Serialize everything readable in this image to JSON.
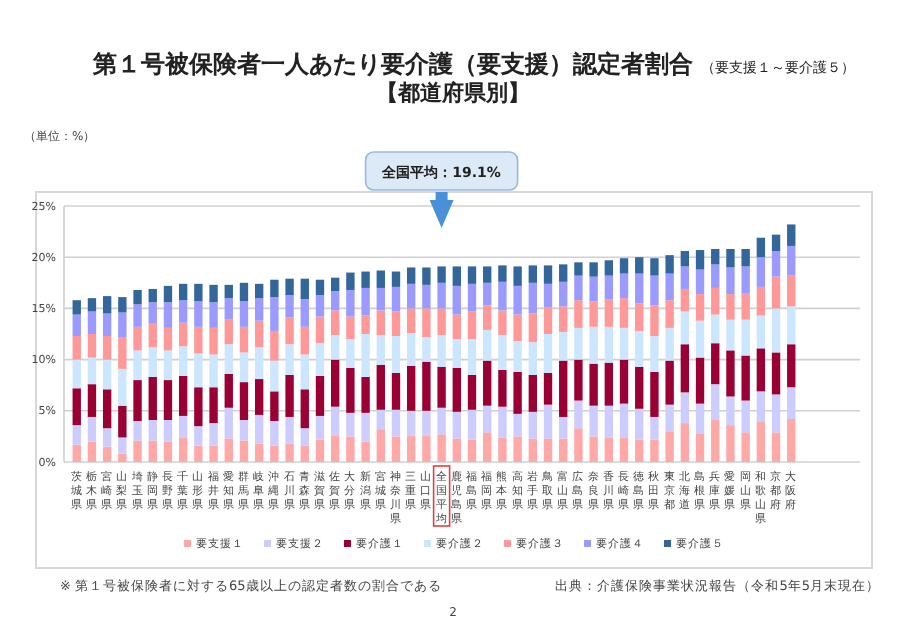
{
  "chart_data": {
    "type": "bar",
    "stacked": true,
    "title": "第１号被保険者一人あたり要介護（要支援）認定者割合",
    "subtitle": "【都道府県別】",
    "ylabel": "（単位：%）",
    "categories": [
      "茨城県",
      "栃木県",
      "宮崎県",
      "山梨県",
      "埼玉県",
      "静岡県",
      "長野県",
      "千葉県",
      "山形県",
      "福井県",
      "愛知県",
      "群馬県",
      "岐阜県",
      "沖縄県",
      "石川県",
      "青森県",
      "滋賀県",
      "佐賀県",
      "大分県",
      "新潟県",
      "宮城県",
      "神奈川県",
      "三重県",
      "山口県",
      "全国平均",
      "鹿児島県",
      "福島県",
      "福岡県",
      "熊本県",
      "高知県",
      "岩手県",
      "鳥取県",
      "富山県",
      "広島県",
      "奈良県",
      "香川県",
      "長崎県",
      "徳島県",
      "秋田県",
      "東京都",
      "北海道",
      "島根県",
      "兵庫県",
      "愛媛県",
      "岡山県",
      "和歌山県",
      "京都府",
      "大阪府"
    ],
    "series": [
      {
        "name": "要支援１",
        "color": "#ffa8a8",
        "values": [
          1.7,
          2.0,
          1.5,
          0.8,
          2.1,
          2.1,
          2.0,
          2.4,
          1.6,
          1.6,
          2.3,
          2.1,
          1.8,
          1.6,
          1.8,
          1.6,
          2.2,
          2.6,
          2.5,
          2.0,
          3.2,
          2.5,
          2.6,
          2.6,
          2.7,
          2.3,
          2.2,
          2.9,
          2.4,
          2.5,
          2.3,
          2.3,
          2.3,
          3.3,
          2.5,
          2.4,
          2.4,
          2.2,
          2.2,
          3.0,
          3.8,
          2.8,
          4.1,
          3.6,
          2.9,
          3.9,
          2.9,
          4.2
        ]
      },
      {
        "name": "要支援２",
        "color": "#ccccff",
        "values": [
          1.9,
          2.4,
          1.8,
          1.6,
          1.9,
          2.0,
          2.1,
          2.1,
          1.9,
          2.2,
          3.0,
          2.0,
          2.8,
          2.4,
          2.6,
          1.7,
          2.3,
          2.8,
          2.3,
          2.8,
          1.9,
          2.6,
          2.4,
          2.4,
          2.6,
          2.6,
          2.9,
          2.6,
          3.0,
          2.2,
          2.6,
          3.3,
          2.1,
          2.7,
          3.0,
          3.1,
          3.3,
          3.0,
          2.2,
          2.6,
          3.0,
          2.9,
          3.5,
          2.8,
          3.1,
          3.0,
          3.7,
          3.1
        ]
      },
      {
        "name": "要介護１",
        "color": "#990033",
        "values": [
          3.6,
          3.2,
          3.8,
          3.1,
          4.0,
          4.2,
          3.9,
          3.9,
          3.8,
          3.5,
          3.3,
          3.7,
          3.5,
          2.9,
          4.1,
          3.8,
          3.9,
          4.6,
          4.4,
          3.5,
          4.4,
          3.6,
          4.4,
          4.8,
          4.0,
          4.3,
          3.4,
          4.4,
          3.6,
          4.1,
          3.6,
          3.1,
          5.5,
          4.0,
          4.1,
          4.2,
          4.3,
          4.1,
          4.4,
          4.3,
          4.7,
          4.5,
          4.0,
          4.5,
          4.4,
          4.2,
          4.1,
          4.2
        ]
      },
      {
        "name": "要介護２",
        "color": "#cce6ff",
        "values": [
          2.8,
          2.6,
          2.9,
          3.6,
          2.9,
          2.9,
          2.9,
          2.9,
          3.3,
          3.2,
          2.9,
          2.9,
          3.1,
          3.0,
          3.0,
          3.4,
          3.2,
          2.4,
          2.8,
          4.2,
          2.9,
          3.6,
          3.2,
          2.4,
          3.1,
          2.8,
          3.5,
          3.0,
          3.4,
          3.0,
          3.2,
          3.8,
          2.8,
          3.1,
          3.6,
          3.5,
          3.1,
          3.5,
          3.5,
          3.2,
          3.2,
          3.6,
          2.8,
          3.0,
          3.5,
          3.2,
          4.3,
          3.7
        ]
      },
      {
        "name": "要介護３",
        "color": "#ff9898",
        "values": [
          2.3,
          2.3,
          2.3,
          3.1,
          2.3,
          2.3,
          2.2,
          2.3,
          2.6,
          2.6,
          2.4,
          2.5,
          2.6,
          2.9,
          2.6,
          2.7,
          2.6,
          2.4,
          2.2,
          1.8,
          2.4,
          2.4,
          2.4,
          2.8,
          2.6,
          2.4,
          2.7,
          2.4,
          2.4,
          2.6,
          2.8,
          2.6,
          2.5,
          2.7,
          2.5,
          2.7,
          2.9,
          2.7,
          3.0,
          2.7,
          2.2,
          2.6,
          2.6,
          2.5,
          2.6,
          2.8,
          3.1,
          3.0
        ]
      },
      {
        "name": "要介護４",
        "color": "#9b9bff",
        "values": [
          2.1,
          2.2,
          2.2,
          2.4,
          2.2,
          2.1,
          2.5,
          2.2,
          2.5,
          2.5,
          2.1,
          2.5,
          2.2,
          3.3,
          2.2,
          2.7,
          2.1,
          1.9,
          2.6,
          2.7,
          2.2,
          2.4,
          2.4,
          2.3,
          2.5,
          2.8,
          2.7,
          2.2,
          2.8,
          2.8,
          3.0,
          2.3,
          2.4,
          2.4,
          2.4,
          2.3,
          2.4,
          2.9,
          2.9,
          2.6,
          2.2,
          2.4,
          2.3,
          2.6,
          2.6,
          2.9,
          2.5,
          2.9
        ]
      },
      {
        "name": "要介護５",
        "color": "#336699",
        "values": [
          1.4,
          1.3,
          1.7,
          1.5,
          1.4,
          1.3,
          1.6,
          1.6,
          1.7,
          1.7,
          1.3,
          1.8,
          1.4,
          1.7,
          1.6,
          2.0,
          1.5,
          1.3,
          1.7,
          1.6,
          1.7,
          1.5,
          1.6,
          1.7,
          1.6,
          1.9,
          1.7,
          1.6,
          1.6,
          1.9,
          1.7,
          1.8,
          1.7,
          1.3,
          1.4,
          1.5,
          1.5,
          1.6,
          1.7,
          1.8,
          1.5,
          1.9,
          1.5,
          1.8,
          1.7,
          1.9,
          1.6,
          2.1
        ]
      }
    ],
    "ylim": [
      0,
      25
    ],
    "yticks": [
      {
        "value": 0,
        "label": "0%"
      },
      {
        "value": 5,
        "label": "5%"
      },
      {
        "value": 10,
        "label": "10%"
      },
      {
        "value": 15,
        "label": "15%"
      },
      {
        "value": 20,
        "label": "20%"
      },
      {
        "value": 25,
        "label": "25%"
      }
    ],
    "grid": "y",
    "legend": "bottom",
    "annotations": [
      "（要支援１～要介護５）",
      "全国平均：19.1%",
      "※ 第１号被保険者に対する65歳以上の認定者数の割合である",
      "出典：介護保険事業状況報告（令和5年5月末現在）",
      "2"
    ]
  }
}
